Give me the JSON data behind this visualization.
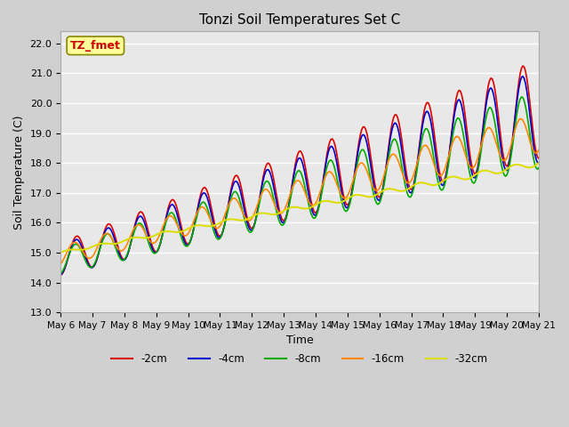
{
  "title": "Tonzi Soil Temperatures Set C",
  "xlabel": "Time",
  "ylabel": "Soil Temperature (C)",
  "ylim": [
    13.0,
    22.4
  ],
  "yticks": [
    13.0,
    14.0,
    15.0,
    16.0,
    17.0,
    18.0,
    19.0,
    20.0,
    21.0,
    22.0
  ],
  "annotation_text": "TZ_fmet",
  "annotation_color": "#cc0000",
  "annotation_bg": "#ffff99",
  "annotation_border": "#888800",
  "series": {
    "2cm": {
      "color": "#dd0000",
      "label": "-2cm"
    },
    "4cm": {
      "color": "#0000cc",
      "label": "-4cm"
    },
    "8cm": {
      "color": "#00aa00",
      "label": "-8cm"
    },
    "16cm": {
      "color": "#ff8800",
      "label": "-16cm"
    },
    "32cm": {
      "color": "#dddd00",
      "label": "-32cm"
    }
  },
  "x_tick_labels": [
    "May 6",
    "May 7",
    "May 8",
    "May 9",
    "May 10",
    "May 11",
    "May 12",
    "May 13",
    "May 14",
    "May 15",
    "May 16",
    "May 17",
    "May 18",
    "May 19",
    "May 20",
    "May 21"
  ]
}
